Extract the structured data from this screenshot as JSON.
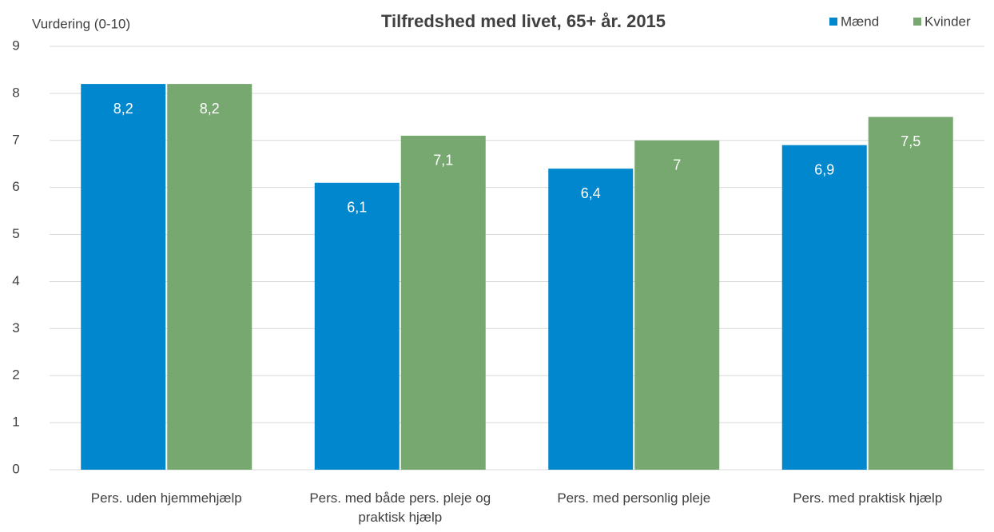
{
  "chart_data": {
    "type": "bar",
    "title": "Tilfredshed med livet, 65+ år. 2015",
    "y_label": "Vurdering (0-10)",
    "categories": [
      "Pers. uden hjemmehjælp",
      "Pers. med både pers. pleje og praktisk hjælp",
      "Pers. med personlig pleje",
      "Pers. med praktisk hjælp"
    ],
    "series": [
      {
        "name": "Mænd",
        "color": "#0087cd",
        "values": [
          8.2,
          6.1,
          6.4,
          6.9
        ],
        "value_labels": [
          "8,2",
          "6,1",
          "6,4",
          "6,9"
        ]
      },
      {
        "name": "Kvinder",
        "color": "#76a86f",
        "values": [
          8.2,
          7.1,
          7,
          7.5
        ],
        "value_labels": [
          "8,2",
          "7,1",
          "7",
          "7,5"
        ]
      }
    ],
    "ylim": [
      0,
      9
    ],
    "yticks": [
      0,
      1,
      2,
      3,
      4,
      5,
      6,
      7,
      8,
      9
    ],
    "grid": true,
    "legend": "top-right"
  }
}
